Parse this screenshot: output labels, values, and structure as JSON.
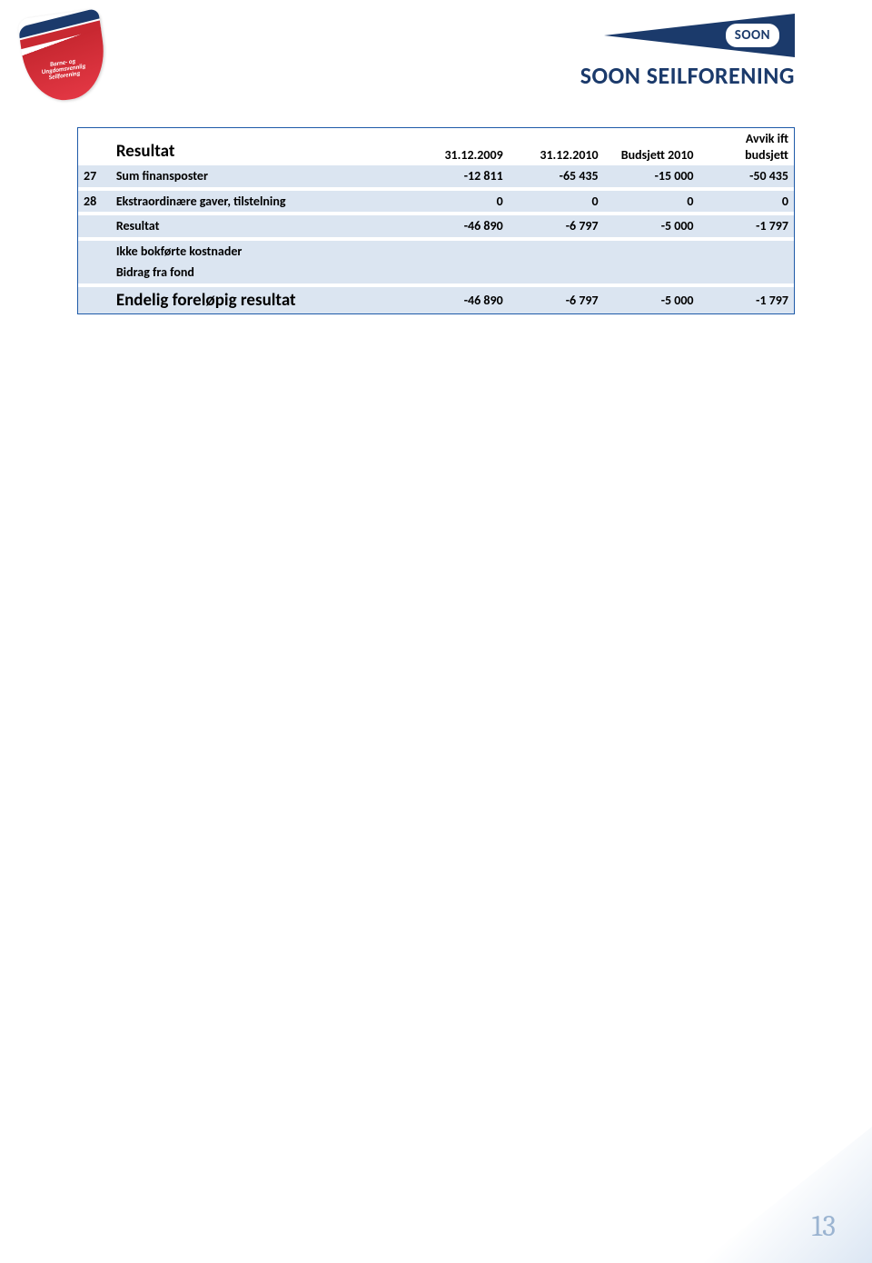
{
  "header": {
    "left_shield_text": "Barne- og Ungdomsvennlig Seilforening",
    "pennant_badge": "SOON",
    "brand_name": "SOON SEILFORENING"
  },
  "table": {
    "title": "Resultat",
    "columns": {
      "c1": "31.12.2009",
      "c2": "31.12.2010",
      "c3": "Budsjett 2010",
      "c4_line1": "Avvik ift",
      "c4_line2": "budsjett"
    },
    "rows": {
      "r27": {
        "idx": "27",
        "label": "Sum finansposter",
        "v1": "-12 811",
        "v2": "-65 435",
        "v3": "-15 000",
        "v4": "-50 435"
      },
      "r28": {
        "idx": "28",
        "label": "Ekstraordinære gaver, tilstelning",
        "v1": "0",
        "v2": "0",
        "v3": "0",
        "v4": "0"
      },
      "res": {
        "label": "Resultat",
        "v1": "-46 890",
        "v2": "-6 797",
        "v3": "-5 000",
        "v4": "-1 797"
      },
      "ikke": {
        "label": "Ikke bokførte kostnader"
      },
      "bidrag": {
        "label": "Bidrag fra fond"
      },
      "final": {
        "label": "Endelig foreløpig resultat",
        "v1": "-46 890",
        "v2": "-6 797",
        "v3": "-5 000",
        "v4": "-1 797"
      }
    }
  },
  "page_number": "13",
  "colors": {
    "table_border": "#1e5aa8",
    "row_shade": "#dbe5f1",
    "brand_navy": "#1b3a6b",
    "brand_red": "#c82831",
    "pagenum": "#9bb4d1"
  }
}
